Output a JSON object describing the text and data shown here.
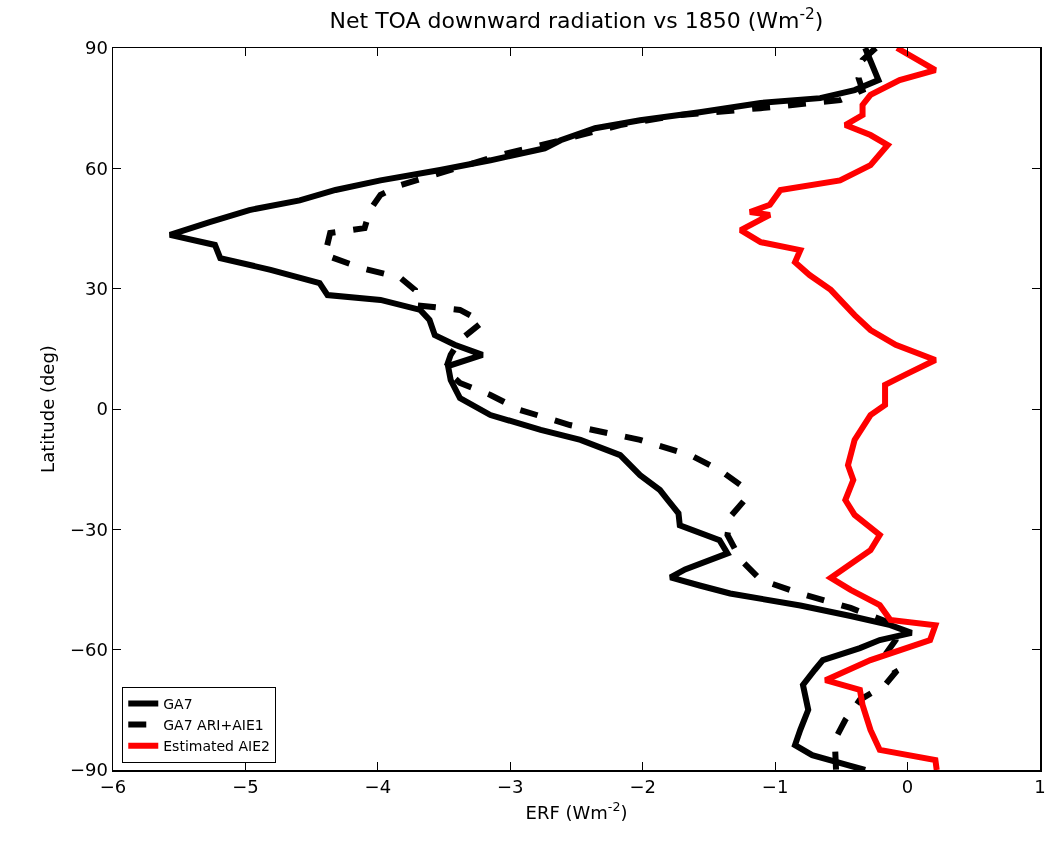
{
  "chart_data": {
    "type": "line",
    "title": "Net TOA downward radiation vs 1850 (Wm$^{-2}$)",
    "xlabel": "ERF (Wm$^{-2}$)",
    "ylabel": "Latitude (deg)",
    "xlim": [
      -6,
      1
    ],
    "xticks": [
      -6,
      -5,
      -4,
      -3,
      -2,
      -1,
      0,
      1
    ],
    "ylim": [
      -90,
      90
    ],
    "yticks": [
      -90,
      -60,
      -30,
      0,
      30,
      60,
      90
    ],
    "grid": false,
    "legend": "bottom left",
    "marker": "none",
    "series": [
      {
        "name": "GA7",
        "color": "#000000",
        "line_style": "solid",
        "x": [
          -0.32,
          -0.22,
          -0.4,
          -0.66,
          -1.11,
          -1.57,
          -2.02,
          -2.36,
          -2.62,
          -2.74,
          -3.15,
          -3.53,
          -3.98,
          -4.32,
          -4.59,
          -4.97,
          -5.27,
          -5.57,
          -5.23,
          -5.19,
          -4.81,
          -4.44,
          -4.38,
          -3.98,
          -3.68,
          -3.61,
          -3.57,
          -3.42,
          -3.21,
          -3.47,
          -3.45,
          -3.38,
          -3.15,
          -2.77,
          -2.47,
          -2.17,
          -2.02,
          -1.87,
          -1.81,
          -1.73,
          -1.72,
          -1.42,
          -1.36,
          -1.68,
          -1.79,
          -1.57,
          -1.34,
          -0.81,
          -0.43,
          -0.13,
          0.03,
          -0.21,
          -0.36,
          -0.64,
          -0.7,
          -0.79,
          -0.75,
          -0.81,
          -0.85,
          -0.72,
          -0.32
        ],
        "values": [
          90,
          82,
          79.5,
          77.5,
          76.3,
          74,
          72,
          70,
          67,
          65,
          62,
          59.6,
          57,
          54.6,
          52,
          49.6,
          46.6,
          43.4,
          40.9,
          37.6,
          34.7,
          31.4,
          28.4,
          27.2,
          24.7,
          22.2,
          18.4,
          16,
          13.5,
          10.7,
          7.2,
          2.7,
          -1.5,
          -5.2,
          -7.7,
          -11.5,
          -16.5,
          -20.2,
          -22.7,
          -26,
          -29,
          -32.7,
          -36,
          -40,
          -42,
          -44,
          -46,
          -49,
          -51.6,
          -53.9,
          -55.8,
          -57.6,
          -59.6,
          -62.6,
          -65,
          -68.8,
          -75,
          -80,
          -83.8,
          -86.3,
          -90
        ]
      },
      {
        "name": "GA7 ARI+AIE1",
        "color": "#000000",
        "line_style": "dashed",
        "x": [
          -0.24,
          -0.34,
          -0.37,
          -0.34,
          -0.51,
          -1.11,
          -1.72,
          -2.17,
          -2.62,
          -3.08,
          -3.45,
          -3.83,
          -3.98,
          -4.06,
          -4.1,
          -4.36,
          -4.4,
          -4.13,
          -3.83,
          -3.72,
          -3.72,
          -3.38,
          -3.21,
          -3.38,
          -3.45,
          -3.49,
          -3.38,
          -3.15,
          -2.93,
          -2.55,
          -2.02,
          -1.64,
          -1.42,
          -1.26,
          -1.23,
          -1.34,
          -1.36,
          -1.26,
          -1.11,
          -0.81,
          -0.43,
          -0.09,
          -0.09,
          -0.17,
          -0.09,
          -0.17,
          -0.36,
          -0.47,
          -0.55,
          -0.54
        ],
        "values": [
          90,
          87,
          82.5,
          79.5,
          77,
          75,
          73.3,
          70.8,
          67,
          63.3,
          59.6,
          55.8,
          53.4,
          49.6,
          45.1,
          43.9,
          38.4,
          35.2,
          32.7,
          29.7,
          25.9,
          24.7,
          21.7,
          17.2,
          13.5,
          9.7,
          6.5,
          3.5,
          -0.2,
          -4,
          -7.7,
          -11.5,
          -15.2,
          -19,
          -22.7,
          -26.9,
          -31.4,
          -37.6,
          -42.6,
          -46,
          -49.6,
          -53.9,
          -57.6,
          -61.3,
          -65.6,
          -68.8,
          -72.5,
          -77.5,
          -82.5,
          -90
        ]
      },
      {
        "name": "Estimated AIE2",
        "color": "#ff0000",
        "line_style": "solid",
        "x": [
          -0.08,
          0.21,
          -0.06,
          -0.28,
          -0.34,
          -0.34,
          -0.47,
          -0.28,
          -0.15,
          -0.28,
          -0.51,
          -0.96,
          -1.04,
          -1.19,
          -1.04,
          -1.26,
          -1.11,
          -0.81,
          -0.85,
          -0.74,
          -0.58,
          -0.4,
          -0.28,
          -0.09,
          0.21,
          -0.02,
          -0.17,
          -0.17,
          -0.28,
          -0.4,
          -0.45,
          -0.41,
          -0.47,
          -0.4,
          -0.21,
          -0.28,
          -0.58,
          -0.43,
          -0.21,
          -0.13,
          0.21,
          0.17,
          -0.28,
          -0.62,
          -0.36,
          -0.34,
          -0.28,
          -0.21,
          0.21,
          0.22
        ],
        "values": [
          90,
          84.5,
          82,
          78.3,
          75.8,
          73.3,
          70.8,
          68.3,
          65.8,
          60.8,
          57,
          54.6,
          50.9,
          49.1,
          48.4,
          44.6,
          41.6,
          39.6,
          36.6,
          33.4,
          29.7,
          23.4,
          19.7,
          16,
          12.2,
          8.5,
          6,
          1,
          -1.5,
          -7.7,
          -14,
          -17.7,
          -22.7,
          -26.4,
          -31.4,
          -35.2,
          -42.1,
          -45.1,
          -48.9,
          -52.6,
          -53.9,
          -57.6,
          -62.6,
          -67.6,
          -70,
          -73.8,
          -80,
          -85,
          -87.5,
          -90
        ]
      }
    ]
  }
}
